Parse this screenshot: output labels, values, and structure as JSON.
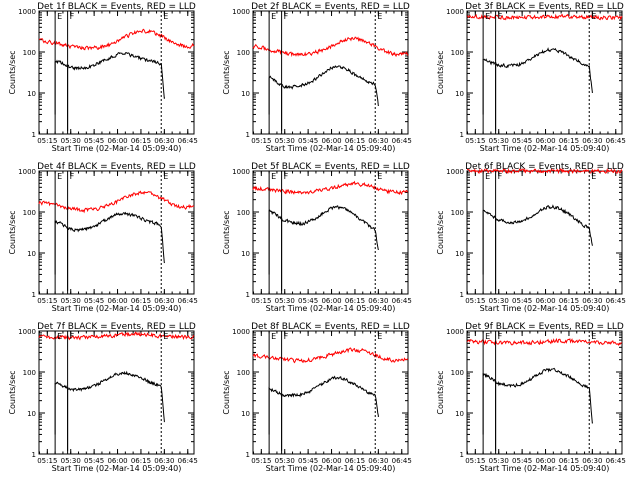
{
  "figure": {
    "x_label": "Start Time (02-Mar-14 05:09:40)",
    "y_label": "Counts/sec",
    "x_ticks": [
      "05:15",
      "05:30",
      "05:45",
      "06:00",
      "06:15",
      "06:30",
      "06:45"
    ],
    "y_ticks": [
      "1",
      "10",
      "100",
      "1000"
    ],
    "marker_labels": {
      "start": "E",
      "detector": "F",
      "end": "E"
    },
    "colors": {
      "events": "#000000",
      "lld": "#ff0000",
      "axes": "#000000"
    }
  },
  "chart_data": [
    {
      "type": "line",
      "title": "Det 1f BLACK = Events, RED = LLD",
      "y_scale": "log",
      "ylim": [
        1,
        1000
      ],
      "xlim": [
        "05:09:40",
        "06:49:00"
      ],
      "vlines": {
        "start": "05:20:00",
        "detector": "05:28:00",
        "end": "06:28:00"
      },
      "series": [
        {
          "name": "BLACK = Events",
          "color": "#000000",
          "start": "05:20:00",
          "end": "06:30:00",
          "x": [
            "05:20",
            "05:25",
            "05:28",
            "05:30",
            "05:35",
            "05:40",
            "05:45",
            "05:50",
            "05:55",
            "06:00",
            "06:05",
            "06:10",
            "06:15",
            "06:20",
            "06:25",
            "06:28",
            "06:30"
          ],
          "y": [
            60,
            52,
            46,
            42,
            40,
            42,
            48,
            58,
            72,
            88,
            90,
            80,
            70,
            60,
            55,
            50,
            8
          ]
        },
        {
          "name": "RED = LLD",
          "color": "#ff0000",
          "start": "05:09:40",
          "end": "06:49:00",
          "x": [
            "05:10",
            "05:15",
            "05:20",
            "05:25",
            "05:30",
            "05:35",
            "05:40",
            "05:45",
            "05:50",
            "05:55",
            "06:00",
            "06:05",
            "06:10",
            "06:15",
            "06:20",
            "06:25",
            "06:30",
            "06:35",
            "06:40",
            "06:45",
            "06:49"
          ],
          "y": [
            195,
            180,
            165,
            150,
            135,
            125,
            122,
            125,
            135,
            155,
            185,
            230,
            290,
            330,
            320,
            280,
            220,
            170,
            145,
            135,
            150
          ]
        }
      ]
    },
    {
      "type": "line",
      "title": "Det 2f BLACK = Events, RED = LLD",
      "y_scale": "log",
      "ylim": [
        1,
        1000
      ],
      "xlim": [
        "05:09:40",
        "06:49:00"
      ],
      "vlines": {
        "start": "05:20:00",
        "detector": "05:28:00",
        "end": "06:28:00"
      },
      "series": [
        {
          "name": "BLACK = Events",
          "color": "#000000",
          "start": "05:20:00",
          "end": "06:30:00",
          "x": [
            "05:20",
            "05:25",
            "05:28",
            "05:30",
            "05:35",
            "05:40",
            "05:45",
            "05:50",
            "05:55",
            "06:00",
            "06:05",
            "06:10",
            "06:15",
            "06:20",
            "06:25",
            "06:28",
            "06:30"
          ],
          "y": [
            25,
            18,
            15,
            14,
            14,
            15,
            17,
            22,
            32,
            42,
            45,
            38,
            28,
            22,
            18,
            16,
            5
          ]
        },
        {
          "name": "RED = LLD",
          "color": "#ff0000",
          "start": "05:09:40",
          "end": "06:49:00",
          "x": [
            "05:10",
            "05:15",
            "05:20",
            "05:25",
            "05:30",
            "05:35",
            "05:40",
            "05:45",
            "05:50",
            "05:55",
            "06:00",
            "06:05",
            "06:10",
            "06:15",
            "06:20",
            "06:25",
            "06:30",
            "06:35",
            "06:40",
            "06:45",
            "06:49"
          ],
          "y": [
            140,
            130,
            115,
            105,
            95,
            88,
            85,
            88,
            98,
            115,
            140,
            175,
            205,
            215,
            195,
            160,
            125,
            100,
            88,
            85,
            90
          ]
        }
      ]
    },
    {
      "type": "line",
      "title": "Det 3f BLACK = Events, RED = LLD",
      "y_scale": "log",
      "ylim": [
        1,
        1000
      ],
      "xlim": [
        "05:09:40",
        "06:49:00"
      ],
      "vlines": {
        "start": "05:20:00",
        "detector": "05:28:00",
        "end": "06:28:00"
      },
      "series": [
        {
          "name": "BLACK = Events",
          "color": "#000000",
          "start": "05:20:00",
          "end": "06:30:00",
          "x": [
            "05:20",
            "05:25",
            "05:28",
            "05:30",
            "05:35",
            "05:40",
            "05:45",
            "05:50",
            "05:55",
            "06:00",
            "06:05",
            "06:10",
            "06:15",
            "06:20",
            "06:25",
            "06:28",
            "06:30"
          ],
          "y": [
            70,
            55,
            50,
            48,
            46,
            47,
            52,
            65,
            85,
            110,
            115,
            100,
            80,
            62,
            50,
            45,
            10
          ]
        },
        {
          "name": "RED = LLD",
          "color": "#ff0000",
          "start": "05:09:40",
          "end": "06:49:00",
          "x": [
            "05:10",
            "05:20",
            "05:30",
            "05:40",
            "05:50",
            "06:00",
            "06:10",
            "06:20",
            "06:30",
            "06:40",
            "06:49"
          ],
          "y": [
            720,
            710,
            700,
            690,
            700,
            720,
            740,
            720,
            700,
            690,
            690
          ]
        }
      ]
    },
    {
      "type": "line",
      "title": "Det 4f BLACK = Events, RED = LLD",
      "y_scale": "log",
      "ylim": [
        1,
        1000
      ],
      "xlim": [
        "05:09:40",
        "06:49:00"
      ],
      "vlines": {
        "start": "05:20:00",
        "detector": "05:28:00",
        "end": "06:28:00"
      },
      "series": [
        {
          "name": "BLACK = Events",
          "color": "#000000",
          "start": "05:20:00",
          "end": "06:30:00",
          "x": [
            "05:20",
            "05:25",
            "05:28",
            "05:30",
            "05:35",
            "05:40",
            "05:45",
            "05:50",
            "05:55",
            "06:00",
            "06:05",
            "06:10",
            "06:15",
            "06:20",
            "06:25",
            "06:28",
            "06:30"
          ],
          "y": [
            60,
            50,
            42,
            38,
            36,
            38,
            44,
            56,
            72,
            90,
            92,
            82,
            70,
            58,
            52,
            45,
            6
          ]
        },
        {
          "name": "RED = LLD",
          "color": "#ff0000",
          "start": "05:09:40",
          "end": "06:49:00",
          "x": [
            "05:10",
            "05:15",
            "05:20",
            "05:25",
            "05:30",
            "05:35",
            "05:40",
            "05:45",
            "05:50",
            "05:55",
            "06:00",
            "06:05",
            "06:10",
            "06:15",
            "06:20",
            "06:25",
            "06:30",
            "06:35",
            "06:40",
            "06:45",
            "06:49"
          ],
          "y": [
            170,
            160,
            150,
            135,
            120,
            112,
            110,
            115,
            130,
            150,
            180,
            225,
            270,
            300,
            285,
            245,
            195,
            155,
            135,
            130,
            140
          ]
        }
      ]
    },
    {
      "type": "line",
      "title": "Det 5f BLACK = Events, RED = LLD",
      "y_scale": "log",
      "ylim": [
        1,
        1000
      ],
      "xlim": [
        "05:09:40",
        "06:49:00"
      ],
      "vlines": {
        "start": "05:20:00",
        "detector": "05:28:00",
        "end": "06:28:00"
      },
      "series": [
        {
          "name": "BLACK = Events",
          "color": "#000000",
          "start": "05:20:00",
          "end": "06:30:00",
          "x": [
            "05:20",
            "05:25",
            "05:28",
            "05:30",
            "05:35",
            "05:40",
            "05:45",
            "05:50",
            "05:55",
            "06:00",
            "06:05",
            "06:10",
            "06:15",
            "06:20",
            "06:25",
            "06:28",
            "06:30"
          ],
          "y": [
            105,
            85,
            68,
            62,
            55,
            52,
            56,
            70,
            95,
            125,
            130,
            110,
            85,
            60,
            42,
            38,
            12
          ]
        },
        {
          "name": "RED = LLD",
          "color": "#ff0000",
          "start": "05:09:40",
          "end": "06:49:00",
          "x": [
            "05:10",
            "05:15",
            "05:20",
            "05:25",
            "05:30",
            "05:35",
            "05:40",
            "05:45",
            "05:50",
            "05:55",
            "06:00",
            "06:05",
            "06:10",
            "06:15",
            "06:20",
            "06:25",
            "06:30",
            "06:35",
            "06:40",
            "06:45",
            "06:49"
          ],
          "y": [
            380,
            370,
            350,
            335,
            320,
            310,
            305,
            310,
            325,
            350,
            385,
            430,
            470,
            490,
            470,
            420,
            365,
            320,
            300,
            300,
            320
          ]
        }
      ]
    },
    {
      "type": "line",
      "title": "Det 6f BLACK = Events, RED = LLD",
      "y_scale": "log",
      "ylim": [
        1,
        1000
      ],
      "xlim": [
        "05:09:40",
        "06:49:00"
      ],
      "vlines": {
        "start": "05:20:00",
        "detector": "05:28:00",
        "end": "06:28:00"
      },
      "series": [
        {
          "name": "BLACK = Events",
          "color": "#000000",
          "start": "05:20:00",
          "end": "06:30:00",
          "x": [
            "05:20",
            "05:25",
            "05:28",
            "05:30",
            "05:35",
            "05:40",
            "05:45",
            "05:50",
            "05:55",
            "06:00",
            "06:05",
            "06:10",
            "06:15",
            "06:20",
            "06:25",
            "06:28",
            "06:30"
          ],
          "y": [
            110,
            85,
            70,
            64,
            58,
            56,
            60,
            75,
            100,
            130,
            135,
            115,
            90,
            65,
            45,
            40,
            15
          ]
        },
        {
          "name": "RED = LLD",
          "color": "#ff0000",
          "start": "05:09:40",
          "end": "06:49:00",
          "x": [
            "05:10",
            "05:20",
            "05:30",
            "05:40",
            "05:50",
            "06:00",
            "06:10",
            "06:20",
            "06:30",
            "06:40",
            "06:49"
          ],
          "y": [
            1000,
            1000,
            1000,
            1000,
            1000,
            1000,
            1000,
            1000,
            1000,
            1000,
            1000
          ]
        }
      ]
    },
    {
      "type": "line",
      "title": "Det 7f BLACK = Events, RED = LLD",
      "y_scale": "log",
      "ylim": [
        1,
        1000
      ],
      "xlim": [
        "05:09:40",
        "06:49:00"
      ],
      "vlines": {
        "start": "05:20:00",
        "detector": "05:28:00",
        "end": "06:28:00"
      },
      "series": [
        {
          "name": "BLACK = Events",
          "color": "#000000",
          "start": "05:20:00",
          "end": "06:30:00",
          "x": [
            "05:20",
            "05:25",
            "05:28",
            "05:30",
            "05:35",
            "05:40",
            "05:45",
            "05:50",
            "05:55",
            "06:00",
            "06:05",
            "06:10",
            "06:15",
            "06:20",
            "06:25",
            "06:28",
            "06:30"
          ],
          "y": [
            55,
            45,
            40,
            38,
            37,
            39,
            45,
            58,
            75,
            92,
            95,
            85,
            72,
            58,
            50,
            45,
            6
          ]
        },
        {
          "name": "RED = LLD",
          "color": "#ff0000",
          "start": "05:09:40",
          "end": "06:49:00",
          "x": [
            "05:10",
            "05:20",
            "05:30",
            "05:40",
            "05:50",
            "06:00",
            "06:10",
            "06:20",
            "06:30",
            "06:40",
            "06:49"
          ],
          "y": [
            720,
            700,
            690,
            700,
            740,
            800,
            830,
            800,
            750,
            710,
            700
          ]
        }
      ]
    },
    {
      "type": "line",
      "title": "Det 8f BLACK = Events, RED = LLD",
      "y_scale": "log",
      "ylim": [
        1,
        1000
      ],
      "xlim": [
        "05:09:40",
        "06:49:00"
      ],
      "vlines": {
        "start": "05:20:00",
        "detector": "05:28:00",
        "end": "06:28:00"
      },
      "series": [
        {
          "name": "BLACK = Events",
          "color": "#000000",
          "start": "05:20:00",
          "end": "06:30:00",
          "x": [
            "05:20",
            "05:25",
            "05:28",
            "05:30",
            "05:35",
            "05:40",
            "05:45",
            "05:50",
            "05:55",
            "06:00",
            "06:05",
            "06:10",
            "06:15",
            "06:20",
            "06:25",
            "06:28",
            "06:30"
          ],
          "y": [
            40,
            32,
            28,
            27,
            27,
            28,
            32,
            42,
            55,
            70,
            72,
            62,
            50,
            38,
            30,
            28,
            8
          ]
        },
        {
          "name": "RED = LLD",
          "color": "#ff0000",
          "start": "05:09:40",
          "end": "06:49:00",
          "x": [
            "05:10",
            "05:15",
            "05:20",
            "05:25",
            "05:30",
            "05:35",
            "05:40",
            "05:45",
            "05:50",
            "05:55",
            "06:00",
            "06:05",
            "06:10",
            "06:15",
            "06:20",
            "06:25",
            "06:30",
            "06:35",
            "06:40",
            "06:45",
            "06:49"
          ],
          "y": [
            250,
            240,
            230,
            215,
            200,
            192,
            190,
            195,
            210,
            235,
            265,
            305,
            340,
            350,
            330,
            290,
            245,
            210,
            195,
            195,
            210
          ]
        }
      ]
    },
    {
      "type": "line",
      "title": "Det 9f BLACK = Events, RED = LLD",
      "y_scale": "log",
      "ylim": [
        1,
        1000
      ],
      "xlim": [
        "05:09:40",
        "06:49:00"
      ],
      "vlines": {
        "start": "05:20:00",
        "detector": "05:28:00",
        "end": "06:28:00"
      },
      "series": [
        {
          "name": "BLACK = Events",
          "color": "#000000",
          "start": "05:20:00",
          "end": "06:30:00",
          "x": [
            "05:20",
            "05:25",
            "05:28",
            "05:30",
            "05:35",
            "05:40",
            "05:45",
            "05:50",
            "05:55",
            "06:00",
            "06:05",
            "06:10",
            "06:15",
            "06:20",
            "06:25",
            "06:28",
            "06:30"
          ],
          "y": [
            90,
            70,
            58,
            52,
            48,
            47,
            52,
            65,
            85,
            110,
            115,
            98,
            78,
            58,
            45,
            42,
            6
          ]
        },
        {
          "name": "RED = LLD",
          "color": "#ff0000",
          "start": "05:09:40",
          "end": "06:49:00",
          "x": [
            "05:10",
            "05:20",
            "05:30",
            "05:40",
            "05:50",
            "06:00",
            "06:10",
            "06:20",
            "06:30",
            "06:40",
            "06:49"
          ],
          "y": [
            560,
            540,
            520,
            510,
            520,
            550,
            580,
            560,
            530,
            510,
            500
          ]
        }
      ]
    }
  ]
}
